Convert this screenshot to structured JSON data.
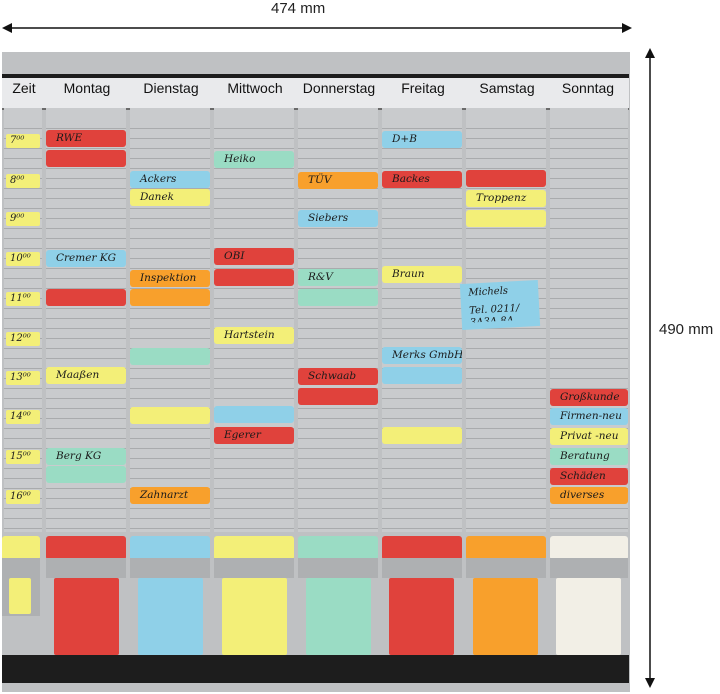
{
  "dimensions": {
    "width_label": "474 mm",
    "height_label": "490 mm"
  },
  "header": {
    "zeit": "Zeit",
    "days": [
      "Montag",
      "Dienstag",
      "Mittwoch",
      "Donnerstag",
      "Freitag",
      "Samstag",
      "Sonntag"
    ]
  },
  "times": [
    "7⁰⁰",
    "8⁰⁰",
    "9⁰⁰",
    "10⁰⁰",
    "11⁰⁰",
    "12⁰⁰",
    "13⁰⁰",
    "14⁰⁰",
    "15⁰⁰",
    "16⁰⁰"
  ],
  "cards": [
    {
      "text": "RWE",
      "color": "#e0423c"
    },
    {
      "text": "",
      "color": "#e0423c"
    },
    {
      "text": "Cremer KG",
      "color": "#8fd0e8"
    },
    {
      "text": "",
      "color": "#e0423c"
    },
    {
      "text": "Maaßen",
      "color": "#f3ef78"
    },
    {
      "text": "Berg KG",
      "color": "#9adcc4"
    },
    {
      "text": "",
      "color": "#9adcc4"
    },
    {
      "text": "Ackers",
      "color": "#8fd0e8"
    },
    {
      "text": "Danek",
      "color": "#f3ef78"
    },
    {
      "text": "Inspektion",
      "color": "#f8a02c"
    },
    {
      "text": "",
      "color": "#f8a02c"
    },
    {
      "text": "",
      "color": "#9adcc4"
    },
    {
      "text": "",
      "color": "#f3ef78"
    },
    {
      "text": "Zahnarzt",
      "color": "#f8a02c"
    },
    {
      "text": "Heiko",
      "color": "#9adcc4"
    },
    {
      "text": "OBI",
      "color": "#e0423c"
    },
    {
      "text": "",
      "color": "#e0423c"
    },
    {
      "text": "Hartstein",
      "color": "#f3ef78"
    },
    {
      "text": "",
      "color": "#8fd0e8"
    },
    {
      "text": "Egerer",
      "color": "#e0423c"
    },
    {
      "text": "TÜV",
      "color": "#f8a02c"
    },
    {
      "text": "Siebers",
      "color": "#8fd0e8"
    },
    {
      "text": "R&V",
      "color": "#9adcc4"
    },
    {
      "text": "",
      "color": "#9adcc4"
    },
    {
      "text": "Schwaab",
      "color": "#e0423c"
    },
    {
      "text": "",
      "color": "#e0423c"
    },
    {
      "text": "D+B",
      "color": "#8fd0e8"
    },
    {
      "text": "Backes",
      "color": "#e0423c"
    },
    {
      "text": "Braun",
      "color": "#f3ef78"
    },
    {
      "text": "Merks GmbH",
      "color": "#8fd0e8"
    },
    {
      "text": "",
      "color": "#8fd0e8"
    },
    {
      "text": "",
      "color": "#f3ef78"
    },
    {
      "text": "",
      "color": "#e0423c"
    },
    {
      "text": "Troppenz",
      "color": "#f3ef78"
    },
    {
      "text": "",
      "color": "#f3ef78"
    },
    {
      "text": "Großkunde",
      "color": "#e0423c"
    },
    {
      "text": "Firmen-neu",
      "color": "#8fd0e8"
    },
    {
      "text": "Privat -neu",
      "color": "#f3ef78"
    },
    {
      "text": "Beratung",
      "color": "#9adcc4"
    },
    {
      "text": "Schäden",
      "color": "#e0423c"
    },
    {
      "text": "diverses",
      "color": "#f8a02c"
    }
  ],
  "note": {
    "line1": "Michels",
    "line2": "Tel. 0211/",
    "line3": "3A3A 8A",
    "color": "#8fd0e8"
  },
  "trays": [
    {
      "color": "#f3ef78"
    },
    {
      "color": "#e0423c"
    },
    {
      "color": "#8fd0e8"
    },
    {
      "color": "#f3ef78"
    },
    {
      "color": "#9adcc4"
    },
    {
      "color": "#e0423c"
    },
    {
      "color": "#f8a02c"
    },
    {
      "color": "#f2efe6"
    }
  ]
}
